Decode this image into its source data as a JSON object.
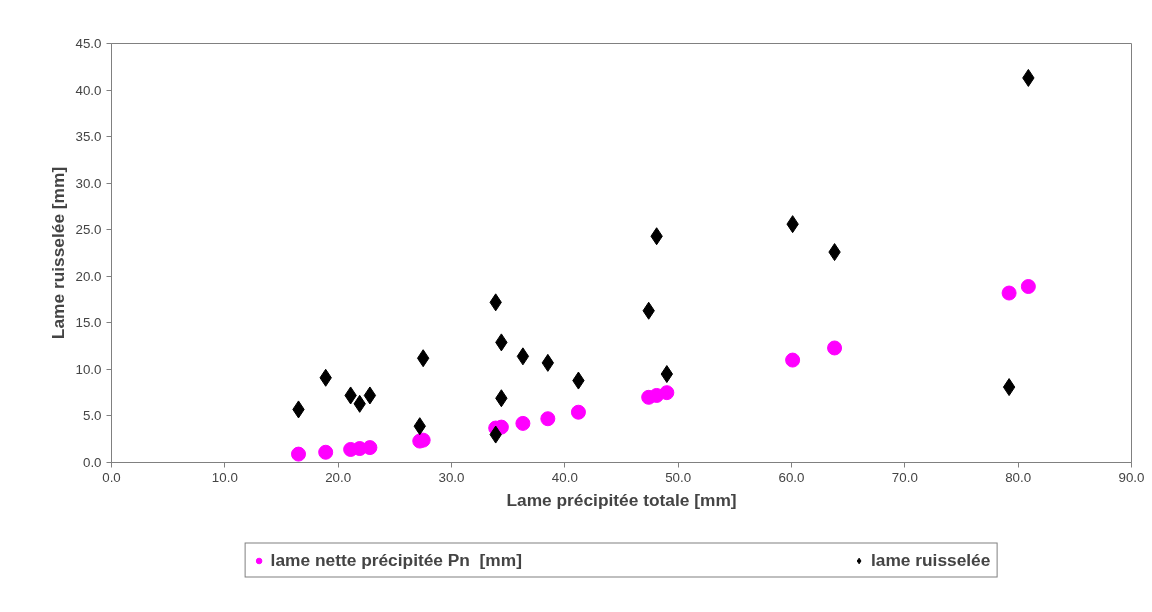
{
  "chart_data": {
    "type": "scatter",
    "xlabel": "Lame précipitée totale [mm]",
    "ylabel": "Lame ruisselée [mm]",
    "xlim": [
      0,
      90
    ],
    "ylim": [
      0,
      45
    ],
    "xticks": [
      {
        "value": 0,
        "label": "0.0"
      },
      {
        "value": 10,
        "label": "10.0"
      },
      {
        "value": 20,
        "label": "20.0"
      },
      {
        "value": 30,
        "label": "30.0"
      },
      {
        "value": 40,
        "label": "40.0"
      },
      {
        "value": 50,
        "label": "50.0"
      },
      {
        "value": 60,
        "label": "60.0"
      },
      {
        "value": 70,
        "label": "70.0"
      },
      {
        "value": 80,
        "label": "80.0"
      },
      {
        "value": 90,
        "label": "90.0"
      }
    ],
    "yticks": [
      {
        "value": 0,
        "label": "0.0"
      },
      {
        "value": 5,
        "label": "5.0"
      },
      {
        "value": 10,
        "label": "10.0"
      },
      {
        "value": 15,
        "label": "15.0"
      },
      {
        "value": 20,
        "label": "20.0"
      },
      {
        "value": 25,
        "label": "25.0"
      },
      {
        "value": 30,
        "label": "30.0"
      },
      {
        "value": 35,
        "label": "35.0"
      },
      {
        "value": 40,
        "label": "40.0"
      },
      {
        "value": 45,
        "label": "45.0"
      }
    ],
    "grid": false,
    "legend": "bottom",
    "series": [
      {
        "name": "lame nette précipitée Pn  [mm]",
        "color": "#ff00ff",
        "marker": "circle",
        "x": [
          16.5,
          18.9,
          21.1,
          21.9,
          22.8,
          27.2,
          27.5,
          33.9,
          34.4,
          36.3,
          38.5,
          41.2,
          47.4,
          48.1,
          49.0,
          60.1,
          63.8,
          79.2,
          80.9
        ],
        "values": [
          0.9,
          1.1,
          1.4,
          1.5,
          1.6,
          2.3,
          2.4,
          3.7,
          3.8,
          4.2,
          4.7,
          5.4,
          7.0,
          7.2,
          7.5,
          11.0,
          12.3,
          18.2,
          18.9
        ]
      },
      {
        "name": "lame ruisselée",
        "color": "#000000",
        "marker": "diamond",
        "x": [
          16.5,
          18.9,
          21.1,
          21.9,
          22.8,
          27.2,
          27.5,
          33.9,
          33.9,
          34.4,
          34.4,
          36.3,
          38.5,
          41.2,
          47.4,
          48.1,
          49.0,
          60.1,
          63.8,
          79.2,
          80.9
        ],
        "values": [
          5.7,
          9.1,
          7.2,
          6.3,
          7.2,
          3.9,
          11.2,
          17.2,
          3.0,
          12.9,
          6.9,
          11.4,
          10.7,
          8.8,
          16.3,
          24.3,
          9.5,
          25.6,
          22.6,
          8.1,
          41.3
        ]
      }
    ]
  }
}
